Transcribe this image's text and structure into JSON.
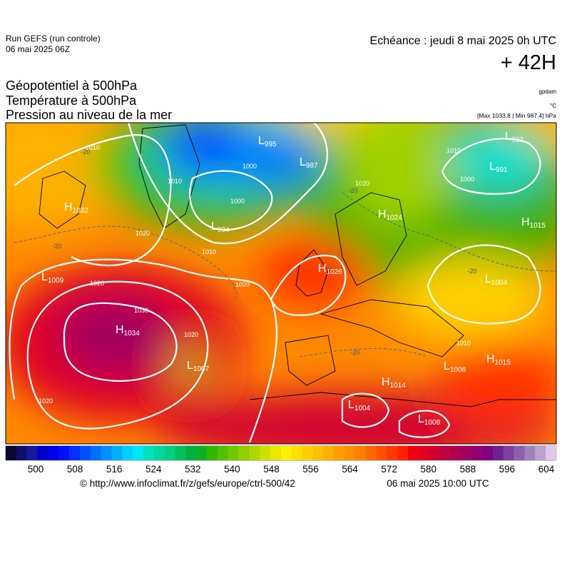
{
  "header": {
    "run": "Run GEFS (run controle)",
    "run_date": "06 mai 2025 06Z",
    "valid": "Echéance : jeudi 8 mai 2025 0h UTC",
    "lead": "+ 42H",
    "fields": [
      "Géopotentiel à 500hPa",
      "Température à 500hPa",
      "Pression au niveau de la mer"
    ],
    "units": [
      "gpdam",
      "°C",
      "[Max 1033.8 | Min 987.4] hPa"
    ]
  },
  "pressure_centers": [
    {
      "letter": "H",
      "value": 1032
    },
    {
      "letter": "L",
      "value": 1009
    },
    {
      "letter": "H",
      "value": 1034
    },
    {
      "letter": "L",
      "value": 1007
    },
    {
      "letter": "L",
      "value": 995
    },
    {
      "letter": "L",
      "value": 987
    },
    {
      "letter": "L",
      "value": 994
    },
    {
      "letter": "H",
      "value": 1024
    },
    {
      "letter": "H",
      "value": 1026
    },
    {
      "letter": "L",
      "value": 993
    },
    {
      "letter": "L",
      "value": 991
    },
    {
      "letter": "H",
      "value": 1015
    },
    {
      "letter": "L",
      "value": 1004
    },
    {
      "letter": "H",
      "value": 1015
    },
    {
      "letter": "L",
      "value": 1008
    },
    {
      "letter": "H",
      "value": 1014
    },
    {
      "letter": "L",
      "value": 1004
    },
    {
      "letter": "L",
      "value": 1008
    }
  ],
  "isobar_labels": [
    1010,
    1020,
    1000,
    1000,
    1010,
    1020,
    1030,
    1020,
    1020,
    1020,
    1010,
    1010,
    1000,
    1010,
    1020
  ],
  "temperature_labels": [
    -20,
    -20,
    -20,
    -20,
    -20
  ],
  "colorbar": {
    "ticks": [
      500,
      508,
      516,
      524,
      532,
      540,
      548,
      556,
      564,
      572,
      580,
      588,
      596,
      604
    ],
    "colors": [
      "#0a0a30",
      "#10106a",
      "#1818a0",
      "#0000c8",
      "#0000e0",
      "#0010ff",
      "#0030ff",
      "#0050ff",
      "#0070ff",
      "#0090ff",
      "#00b0ff",
      "#00d0ff",
      "#00e8f0",
      "#00e0c0",
      "#00d8a0",
      "#00d080",
      "#00c060",
      "#00b040",
      "#10b020",
      "#30b800",
      "#50c000",
      "#70c800",
      "#90d000",
      "#b0d800",
      "#d0e000",
      "#e8e800",
      "#fff000",
      "#ffe000",
      "#ffd000",
      "#ffc000",
      "#ffb000",
      "#ffa000",
      "#ff9000",
      "#ff8000",
      "#ff6800",
      "#ff5000",
      "#ff3800",
      "#ff2000",
      "#f00010",
      "#e00020",
      "#d00030",
      "#c00040",
      "#b00050",
      "#a00060",
      "#900070",
      "#800080",
      "#702090",
      "#8040a0",
      "#9060b0",
      "#a080c0",
      "#c0a0d0",
      "#e0c8e8"
    ]
  },
  "footer": {
    "source": "© http://www.infoclimat.fr/z/gefs/europe/ctrl-500/42",
    "generated": "06 mai 2025 10:00 UTC"
  }
}
